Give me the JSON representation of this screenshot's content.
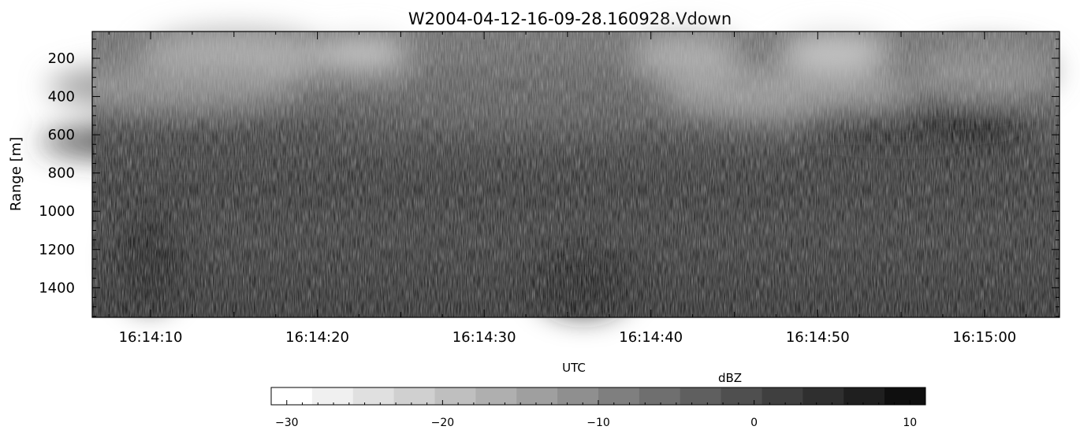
{
  "chart_data": {
    "type": "heatmap",
    "title": "W2004-04-12-16-09-28.160928.Vdown",
    "xlabel": "UTC",
    "ylabel": "Range [m]",
    "x_range": [
      "16:14:06.5",
      "16:15:04.5"
    ],
    "x_ticks": [
      {
        "t": "16:14:10",
        "label": "16:14:10"
      },
      {
        "t": "16:14:20",
        "label": "16:14:20"
      },
      {
        "t": "16:14:30",
        "label": "16:14:30"
      },
      {
        "t": "16:14:40",
        "label": "16:14:40"
      },
      {
        "t": "16:14:50",
        "label": "16:14:50"
      },
      {
        "t": "16:15:00",
        "label": "16:15:00"
      }
    ],
    "y_range": [
      60,
      1555
    ],
    "y_reversed": true,
    "y_ticks": [
      200,
      400,
      600,
      800,
      1000,
      1200,
      1400
    ],
    "colorbar": {
      "title": "dBZ",
      "range": [
        -31,
        11
      ],
      "ticks": [
        -30,
        -20,
        -10,
        0,
        10
      ],
      "colors": [
        "#ffffff",
        "#f0f0f0",
        "#e0e0e0",
        "#d0d0d0",
        "#bfbfbf",
        "#afafaf",
        "#9f9f9f",
        "#8f8f8f",
        "#7f7f7f",
        "#6f6f6f",
        "#5f5f5f",
        "#4f4f4f",
        "#3f3f3f",
        "#2f2f2f",
        "#1f1f1f",
        "#0f0f0f"
      ]
    },
    "field_description": "downward-looking radar reflectivity; brighter (weaker dBZ) patches near 150-450 m, darker (stronger) band near 600 m and diffuse dark layer 700-900 m"
  }
}
